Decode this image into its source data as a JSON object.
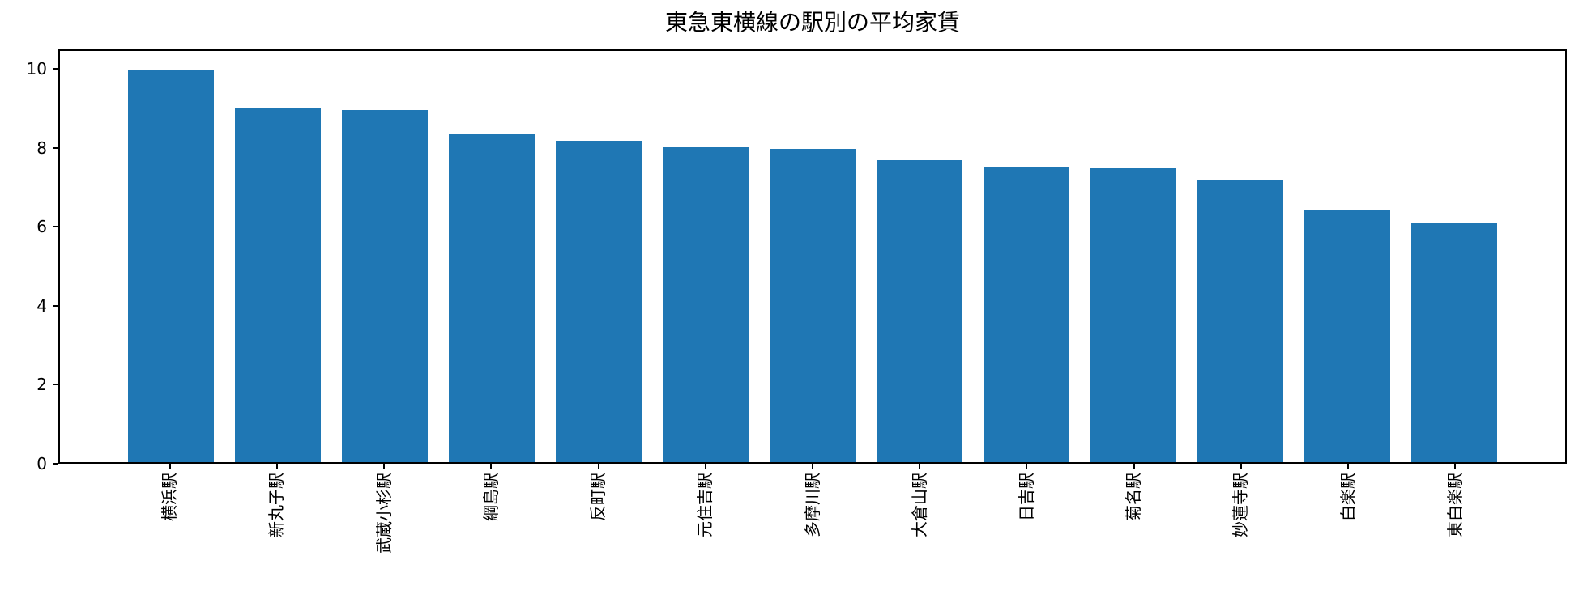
{
  "chart_data": {
    "type": "bar",
    "title": "東急東横線の駅別の平均家賃",
    "categories": [
      "横浜駅",
      "新丸子駅",
      "武蔵小杉駅",
      "綱島駅",
      "反町駅",
      "元住吉駅",
      "多摩川駅",
      "大倉山駅",
      "日吉駅",
      "菊名駅",
      "妙蓮寺駅",
      "白楽駅",
      "東白楽駅"
    ],
    "values": [
      10.0,
      9.05,
      9.0,
      8.4,
      8.2,
      8.05,
      8.0,
      7.7,
      7.55,
      7.5,
      7.2,
      6.45,
      6.1
    ],
    "xlabel": "",
    "ylabel": "",
    "ylim": [
      0,
      10.5
    ],
    "yticks": [
      0,
      2,
      4,
      6,
      8,
      10
    ],
    "xlim": [
      -1.04,
      13.04
    ],
    "bar_width": 0.8,
    "bar_color": "#1f77b4",
    "axis_color": "#000000",
    "grid": false,
    "legend": false
  }
}
